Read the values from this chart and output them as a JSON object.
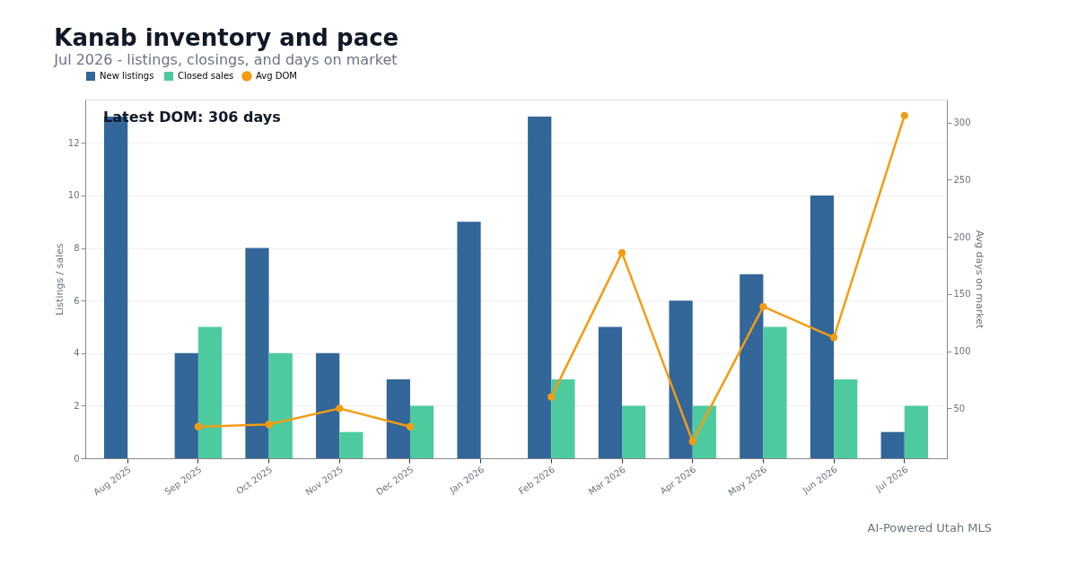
{
  "chart_data": {
    "type": "bar",
    "title": "Kanab inventory and pace",
    "subtitle": "Jul 2026 - listings, closings, and days on market",
    "ylabel": "Listings / sales",
    "y2label": "Avg days on market",
    "categories": [
      "Aug 2025",
      "Sep 2025",
      "Oct 2025",
      "Nov 2025",
      "Dec 2025",
      "Jan 2026",
      "Feb 2026",
      "Mar 2026",
      "Apr 2026",
      "May 2026",
      "Jun 2026",
      "Jul 2026"
    ],
    "series": [
      {
        "name": "New listings",
        "color": "#336699",
        "values": [
          13,
          4,
          8,
          4,
          3,
          9,
          13,
          5,
          6,
          7,
          10,
          1
        ]
      },
      {
        "name": "Closed sales",
        "color": "#4dcb9f",
        "values": [
          0,
          5,
          4,
          1,
          2,
          0,
          3,
          2,
          2,
          5,
          3,
          2
        ]
      },
      {
        "name": "Avg DOM",
        "type": "line",
        "axis": "y2",
        "color": "#f39c12",
        "values": [
          null,
          34,
          36,
          50,
          34,
          null,
          60,
          186,
          21,
          139,
          112,
          306
        ]
      }
    ],
    "ylim": [
      0,
      13.65
    ],
    "yticks": [
      0,
      2,
      4,
      6,
      8,
      10,
      12
    ],
    "y2lim": [
      6.4,
      320
    ],
    "y2ticks": [
      50,
      100,
      150,
      200,
      250,
      300
    ],
    "grid": "y",
    "legend": "top",
    "marker": "circle",
    "line_style": "solid",
    "annotations": [
      "Latest DOM: 306 days",
      "AI-Powered Utah MLS"
    ]
  }
}
